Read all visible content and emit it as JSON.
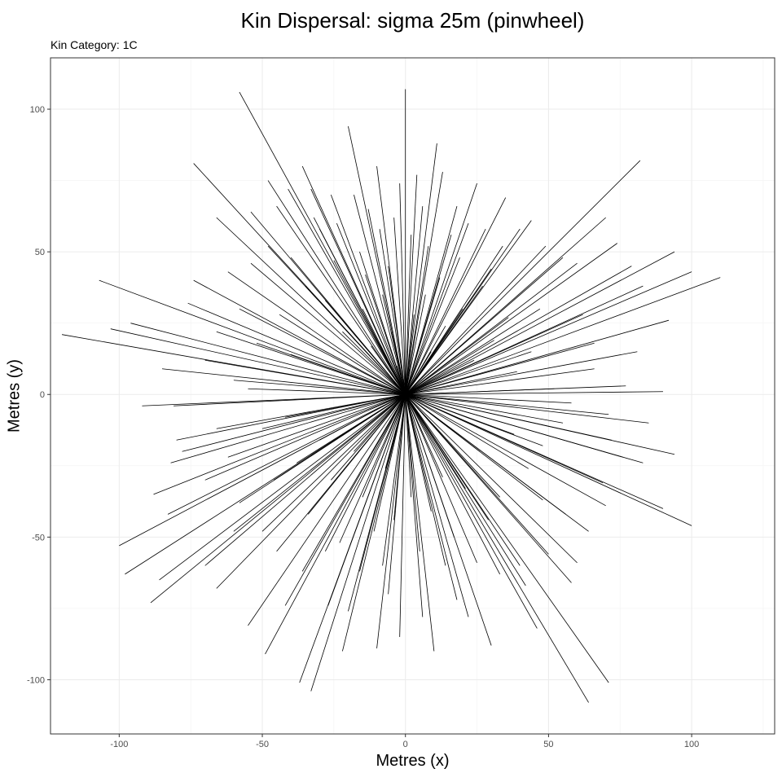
{
  "chart_data": {
    "type": "line",
    "title": "Kin Dispersal: sigma 25m (pinwheel)",
    "subtitle": "Kin Category: 1C",
    "xlabel": "Metres (x)",
    "ylabel": "Metres (y)",
    "xlim": [
      -124,
      129
    ],
    "ylim": [
      -119,
      118
    ],
    "x_ticks": [
      -100,
      -50,
      0,
      50,
      100
    ],
    "y_ticks": [
      -100,
      -50,
      0,
      50,
      100
    ],
    "grid": true,
    "origin": [
      0,
      0
    ],
    "series": [
      {
        "segment_endpoints": [
          [
            -120,
            21
          ],
          [
            -107,
            40
          ],
          [
            -103,
            23
          ],
          [
            -96,
            25
          ],
          [
            -85,
            9
          ],
          [
            -81,
            -4
          ],
          [
            -76,
            32
          ],
          [
            -74,
            40
          ],
          [
            -100,
            -53
          ],
          [
            -98,
            -63
          ],
          [
            -89,
            -73
          ],
          [
            -86,
            -65
          ],
          [
            -88,
            -35
          ],
          [
            -83,
            -42
          ],
          [
            -82,
            -24
          ],
          [
            -66,
            -68
          ],
          [
            -58,
            106
          ],
          [
            -74,
            81
          ],
          [
            -66,
            62
          ],
          [
            -62,
            43
          ],
          [
            -54,
            64
          ],
          [
            -48,
            75
          ],
          [
            -45,
            66
          ],
          [
            -41,
            72
          ],
          [
            -36,
            80
          ],
          [
            -33,
            72
          ],
          [
            -30,
            58
          ],
          [
            -25,
            47
          ],
          [
            -20,
            94
          ],
          [
            -13,
            65
          ],
          [
            -9,
            58
          ],
          [
            -6,
            45
          ],
          [
            -2,
            74
          ],
          [
            0,
            107
          ],
          [
            4,
            77
          ],
          [
            6,
            66
          ],
          [
            11,
            88
          ],
          [
            13,
            78
          ],
          [
            16,
            56
          ],
          [
            19,
            48
          ],
          [
            22,
            60
          ],
          [
            28,
            58
          ],
          [
            35,
            69
          ],
          [
            40,
            58
          ],
          [
            44,
            61
          ],
          [
            49,
            52
          ],
          [
            55,
            48
          ],
          [
            60,
            46
          ],
          [
            82,
            82
          ],
          [
            70,
            62
          ],
          [
            74,
            53
          ],
          [
            79,
            45
          ],
          [
            83,
            38
          ],
          [
            94,
            50
          ],
          [
            100,
            43
          ],
          [
            110,
            41
          ],
          [
            92,
            26
          ],
          [
            81,
            15
          ],
          [
            77,
            3
          ],
          [
            90,
            1
          ],
          [
            66,
            9
          ],
          [
            58,
            -3
          ],
          [
            71,
            -7
          ],
          [
            85,
            -10
          ],
          [
            94,
            -21
          ],
          [
            83,
            -24
          ],
          [
            69,
            -31
          ],
          [
            70,
            -39
          ],
          [
            90,
            -40
          ],
          [
            100,
            -46
          ],
          [
            71,
            -101
          ],
          [
            64,
            -108
          ],
          [
            60,
            -59
          ],
          [
            56,
            -42
          ],
          [
            50,
            -56
          ],
          [
            48,
            -37
          ],
          [
            42,
            -67
          ],
          [
            33,
            -63
          ],
          [
            25,
            -59
          ],
          [
            22,
            -78
          ],
          [
            18,
            -72
          ],
          [
            10,
            -90
          ],
          [
            6,
            -78
          ],
          [
            -2,
            -85
          ],
          [
            -6,
            -70
          ],
          [
            -10,
            -89
          ],
          [
            -16,
            -62
          ],
          [
            -20,
            -76
          ],
          [
            -27,
            -74
          ],
          [
            -33,
            -104
          ],
          [
            -37,
            -101
          ],
          [
            -42,
            -74
          ],
          [
            -49,
            -91
          ],
          [
            -55,
            -81
          ],
          [
            -50,
            -48
          ],
          [
            -58,
            -38
          ],
          [
            -70,
            -30
          ],
          [
            -78,
            -20
          ],
          [
            -66,
            -12
          ],
          [
            -92,
            -4
          ],
          [
            -60,
            5
          ],
          [
            -52,
            18
          ],
          [
            -40,
            14
          ],
          [
            -44,
            28
          ],
          [
            -35,
            38
          ],
          [
            -28,
            33
          ],
          [
            -22,
            22
          ],
          [
            -15,
            30
          ],
          [
            -12,
            17
          ],
          [
            -8,
            35
          ],
          [
            -5,
            22
          ],
          [
            -3,
            10
          ],
          [
            3,
            28
          ],
          [
            7,
            35
          ],
          [
            9,
            15
          ],
          [
            14,
            24
          ],
          [
            20,
            30
          ],
          [
            24,
            12
          ],
          [
            27,
            38
          ],
          [
            31,
            19
          ],
          [
            36,
            27
          ],
          [
            39,
            8
          ],
          [
            44,
            15
          ],
          [
            47,
            30
          ],
          [
            52,
            2
          ],
          [
            55,
            -10
          ],
          [
            48,
            -18
          ],
          [
            43,
            -26
          ],
          [
            38,
            -14
          ],
          [
            33,
            -36
          ],
          [
            29,
            -44
          ],
          [
            26,
            -20
          ],
          [
            21,
            -33
          ],
          [
            17,
            -50
          ],
          [
            13,
            -29
          ],
          [
            9,
            -41
          ],
          [
            5,
            -55
          ],
          [
            2,
            -36
          ],
          [
            -4,
            -44
          ],
          [
            -7,
            -26
          ],
          [
            -11,
            -48
          ],
          [
            -15,
            -36
          ],
          [
            -18,
            -20
          ],
          [
            -23,
            -52
          ],
          [
            -26,
            -30
          ],
          [
            -30,
            -16
          ],
          [
            -34,
            -42
          ],
          [
            -38,
            -24
          ],
          [
            -42,
            -8
          ],
          [
            -46,
            -30
          ],
          [
            -50,
            -12
          ],
          [
            -55,
            2
          ],
          [
            -24,
            60
          ],
          [
            -18,
            70
          ],
          [
            -14,
            42
          ],
          [
            -10,
            80
          ],
          [
            8,
            52
          ],
          [
            12,
            41
          ],
          [
            18,
            66
          ],
          [
            25,
            74
          ],
          [
            30,
            44
          ],
          [
            34,
            52
          ],
          [
            62,
            28
          ],
          [
            66,
            18
          ],
          [
            72,
            -16
          ],
          [
            76,
            -22
          ],
          [
            64,
            -48
          ],
          [
            58,
            -66
          ],
          [
            46,
            -82
          ],
          [
            40,
            -60
          ],
          [
            30,
            -88
          ],
          [
            14,
            -60
          ],
          [
            -8,
            -60
          ],
          [
            -22,
            -90
          ],
          [
            -28,
            -55
          ],
          [
            -36,
            -62
          ],
          [
            -45,
            -55
          ],
          [
            -60,
            -48
          ],
          [
            -70,
            -60
          ],
          [
            -62,
            -22
          ],
          [
            -80,
            -16
          ],
          [
            -70,
            12
          ],
          [
            -66,
            22
          ],
          [
            -58,
            30
          ],
          [
            -54,
            46
          ],
          [
            -48,
            52
          ],
          [
            -40,
            48
          ],
          [
            -32,
            62
          ],
          [
            -26,
            70
          ],
          [
            -16,
            50
          ],
          [
            -4,
            62
          ],
          [
            2,
            56
          ]
        ]
      }
    ]
  }
}
